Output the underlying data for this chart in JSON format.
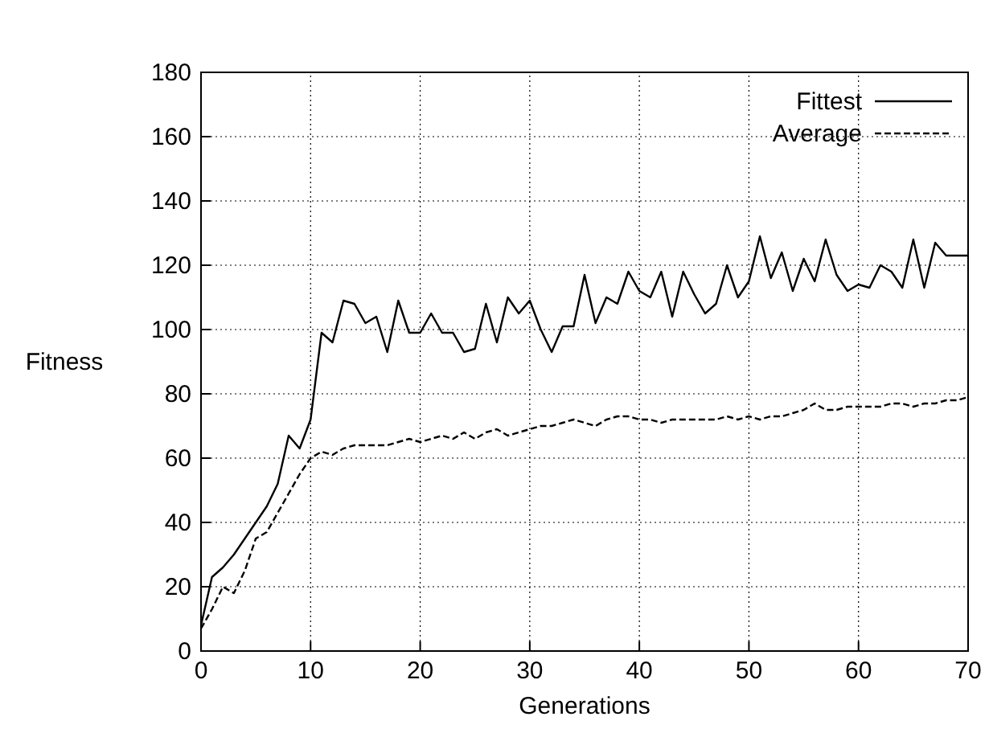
{
  "chart_data": {
    "type": "line",
    "xlabel": "Generations",
    "ylabel": "Fitness",
    "x": [
      0,
      1,
      2,
      3,
      4,
      5,
      6,
      7,
      8,
      9,
      10,
      11,
      12,
      13,
      14,
      15,
      16,
      17,
      18,
      19,
      20,
      21,
      22,
      23,
      24,
      25,
      26,
      27,
      28,
      29,
      30,
      31,
      32,
      33,
      34,
      35,
      36,
      37,
      38,
      39,
      40,
      41,
      42,
      43,
      44,
      45,
      46,
      47,
      48,
      49,
      50,
      51,
      52,
      53,
      54,
      55,
      56,
      57,
      58,
      59,
      60,
      61,
      62,
      63,
      64,
      65,
      66,
      67,
      68,
      69,
      70
    ],
    "series": [
      {
        "name": "Fittest",
        "color": "#000000",
        "line_style": "solid",
        "values": [
          8,
          23,
          26,
          30,
          35,
          40,
          45,
          52,
          67,
          63,
          72,
          99,
          96,
          109,
          108,
          102,
          104,
          93,
          109,
          99,
          99,
          105,
          99,
          99,
          93,
          94,
          108,
          96,
          110,
          105,
          109,
          100,
          93,
          101,
          101,
          117,
          102,
          110,
          108,
          118,
          112,
          110,
          118,
          104,
          118,
          111,
          105,
          108,
          120,
          110,
          115,
          129,
          116,
          124,
          112,
          122,
          115,
          128,
          117,
          112,
          114,
          113,
          120,
          118,
          113,
          128,
          113,
          127,
          123,
          123,
          123
        ]
      },
      {
        "name": "Average",
        "color": "#000000",
        "line_style": "dashed",
        "values": [
          7,
          13,
          20,
          18,
          25,
          35,
          37,
          43,
          49,
          55,
          60,
          62,
          61,
          63,
          64,
          64,
          64,
          64,
          65,
          66,
          65,
          66,
          67,
          66,
          68,
          66,
          68,
          69,
          67,
          68,
          69,
          70,
          70,
          71,
          72,
          71,
          70,
          72,
          73,
          73,
          72,
          72,
          71,
          72,
          72,
          72,
          72,
          72,
          73,
          72,
          73,
          72,
          73,
          73,
          74,
          75,
          77,
          75,
          75,
          76,
          76,
          76,
          76,
          77,
          77,
          76,
          77,
          77,
          78,
          78,
          79
        ]
      }
    ],
    "xlim": [
      0,
      70
    ],
    "xticks": [
      0,
      10,
      20,
      30,
      40,
      50,
      60,
      70
    ],
    "ylim": [
      0,
      180
    ],
    "yticks": [
      0,
      20,
      40,
      60,
      80,
      100,
      120,
      140,
      160,
      180
    ],
    "grid": true,
    "legend": "top right"
  }
}
